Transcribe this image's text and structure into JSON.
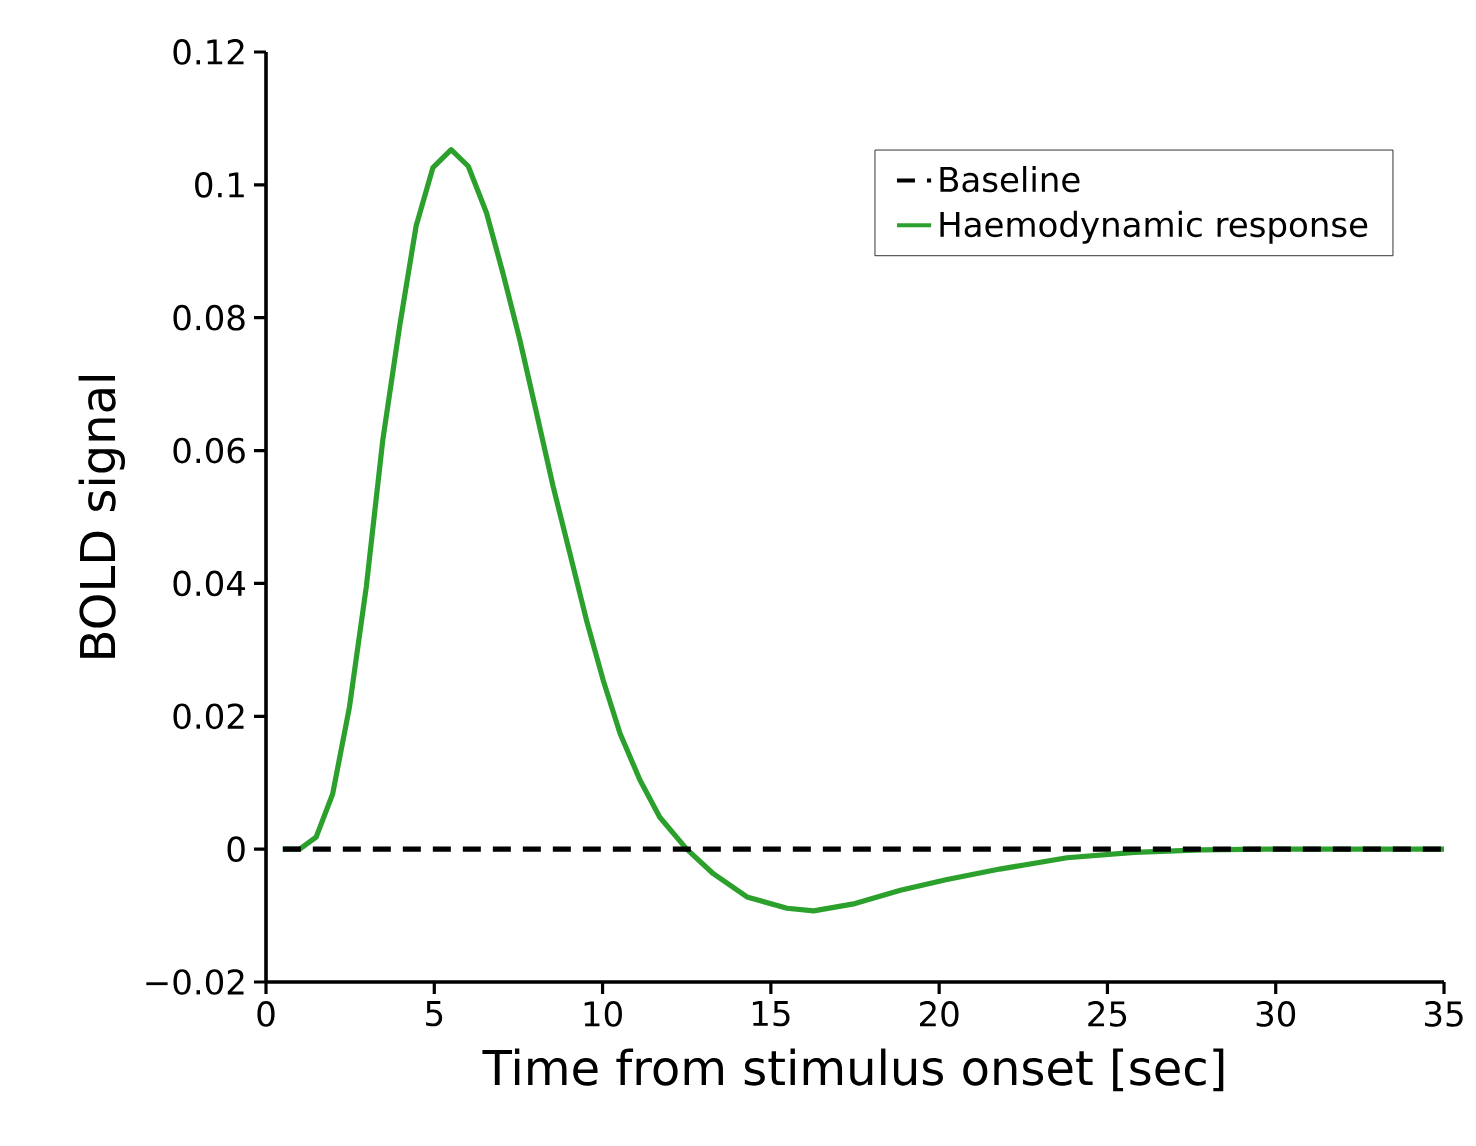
{
  "chart_data": {
    "type": "line",
    "xlabel": "Time from stimulus onset [sec]",
    "ylabel": "BOLD signal",
    "xlim": [
      0,
      35
    ],
    "xticks": [
      0,
      5,
      10,
      15,
      20,
      25,
      30,
      35
    ],
    "ylim": [
      -0.02,
      0.12
    ],
    "yticks": [
      {
        "value": -0.02,
        "label": "−0.02"
      },
      0,
      0.02,
      0.04,
      0.06,
      0.08,
      0.1,
      0.12
    ],
    "grid": false,
    "legend": "top right",
    "marker": "none",
    "series": [
      {
        "name": "Baseline",
        "color": "#000000",
        "line_style": "dashed",
        "x": [
          0.5,
          35
        ],
        "values": [
          0,
          0
        ]
      },
      {
        "name": "Haemodynamic response",
        "color": "#2ca02c",
        "line_style": "solid",
        "x": [
          0.5,
          1.0,
          1.49,
          1.98,
          2.48,
          2.98,
          3.47,
          3.97,
          4.46,
          4.96,
          5.5,
          6.01,
          6.55,
          7.04,
          7.54,
          8.04,
          8.53,
          9.03,
          9.52,
          10.02,
          10.52,
          11.11,
          11.7,
          12.5,
          13.29,
          14.29,
          15.48,
          16.27,
          17.5,
          18.85,
          20.2,
          21.8,
          23.8,
          25.8,
          27.8,
          29.7,
          35
        ],
        "values": [
          0,
          0,
          0.0018,
          0.0083,
          0.0214,
          0.0395,
          0.0616,
          0.0787,
          0.0938,
          0.1026,
          0.1053,
          0.1028,
          0.0958,
          0.0867,
          0.0767,
          0.0656,
          0.0546,
          0.0445,
          0.0345,
          0.0254,
          0.0174,
          0.0104,
          0.0048,
          0,
          -0.0037,
          -0.0072,
          -0.0089,
          -0.0093,
          -0.0082,
          -0.0062,
          -0.0046,
          -0.003,
          -0.0013,
          -0.0005,
          -0.0001,
          0,
          0
        ]
      }
    ]
  }
}
